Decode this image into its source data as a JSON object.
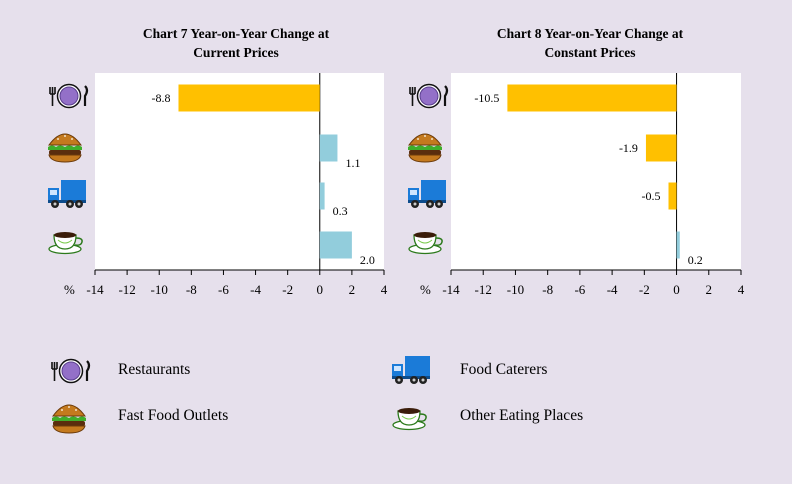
{
  "chart_data": [
    {
      "type": "bar",
      "orientation": "horizontal",
      "title": "Chart 7  Year-on-Year  Change at\nCurrent Prices",
      "xlabel": "%",
      "xlim": [
        -14,
        4
      ],
      "xticks": [
        -14,
        -12,
        -10,
        -8,
        -6,
        -4,
        -2,
        0,
        2,
        4
      ],
      "categories": [
        "Restaurants",
        "Fast Food Outlets",
        "Food Caterers",
        "Other Eating Places"
      ],
      "values": [
        -8.8,
        1.1,
        0.3,
        2.0
      ],
      "labels": [
        "-8.8",
        "1.1",
        "0.3",
        "2.0"
      ]
    },
    {
      "type": "bar",
      "orientation": "horizontal",
      "title": "Chart 8  Year-on-Year  Change at\nConstant Prices",
      "xlabel": "%",
      "xlim": [
        -14,
        4
      ],
      "xticks": [
        -14,
        -12,
        -10,
        -8,
        -6,
        -4,
        -2,
        0,
        2,
        4
      ],
      "categories": [
        "Restaurants",
        "Fast Food Outlets",
        "Food Caterers",
        "Other Eating Places"
      ],
      "values": [
        -10.5,
        -1.9,
        -0.5,
        0.2
      ],
      "labels": [
        "-10.5",
        "-1.9",
        "-0.5",
        "0.2"
      ]
    }
  ],
  "colors": {
    "negative": "#ffc000",
    "positive": "#92cddc",
    "background": "#e6e0ec"
  },
  "legend": [
    {
      "label": "Restaurants",
      "icon": "restaurant-icon"
    },
    {
      "label": "Food Caterers",
      "icon": "truck-icon"
    },
    {
      "label": "Fast Food Outlets",
      "icon": "burger-icon"
    },
    {
      "label": "Other Eating Places",
      "icon": "coffee-icon"
    }
  ]
}
